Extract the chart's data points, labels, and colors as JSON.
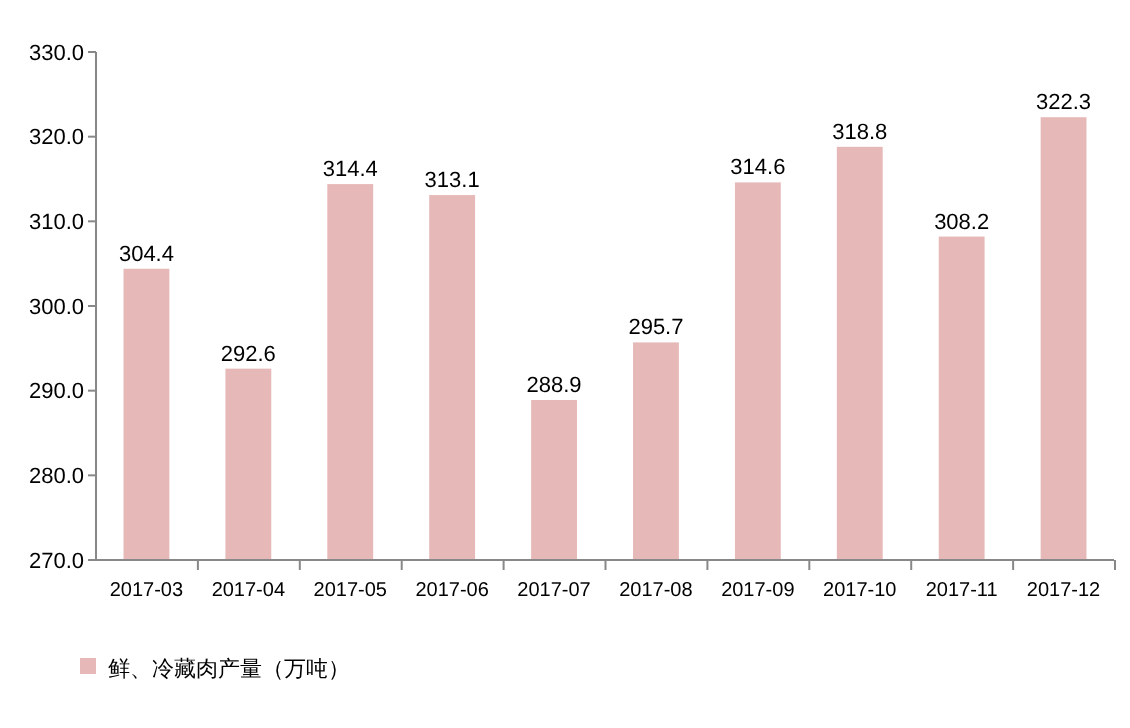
{
  "chart_data": {
    "type": "bar",
    "categories": [
      "2017-03",
      "2017-04",
      "2017-05",
      "2017-06",
      "2017-07",
      "2017-08",
      "2017-09",
      "2017-10",
      "2017-11",
      "2017-12"
    ],
    "series": [
      {
        "name": "鲜、冷藏肉产量（万吨）",
        "color": "#e6b9b8",
        "values": [
          304.4,
          292.6,
          314.4,
          313.1,
          288.9,
          295.7,
          314.6,
          318.8,
          308.2,
          322.3
        ]
      }
    ],
    "ylim": [
      270,
      330
    ],
    "yticks": [
      {
        "value": 270,
        "label": "270.0"
      },
      {
        "value": 280,
        "label": "280.0"
      },
      {
        "value": 290,
        "label": "290.0"
      },
      {
        "value": 300,
        "label": "300.0"
      },
      {
        "value": 310,
        "label": "310.0"
      },
      {
        "value": 320,
        "label": "320.0"
      },
      {
        "value": 330,
        "label": "330.0"
      }
    ],
    "data_labels": true,
    "legend": "bottom left"
  }
}
